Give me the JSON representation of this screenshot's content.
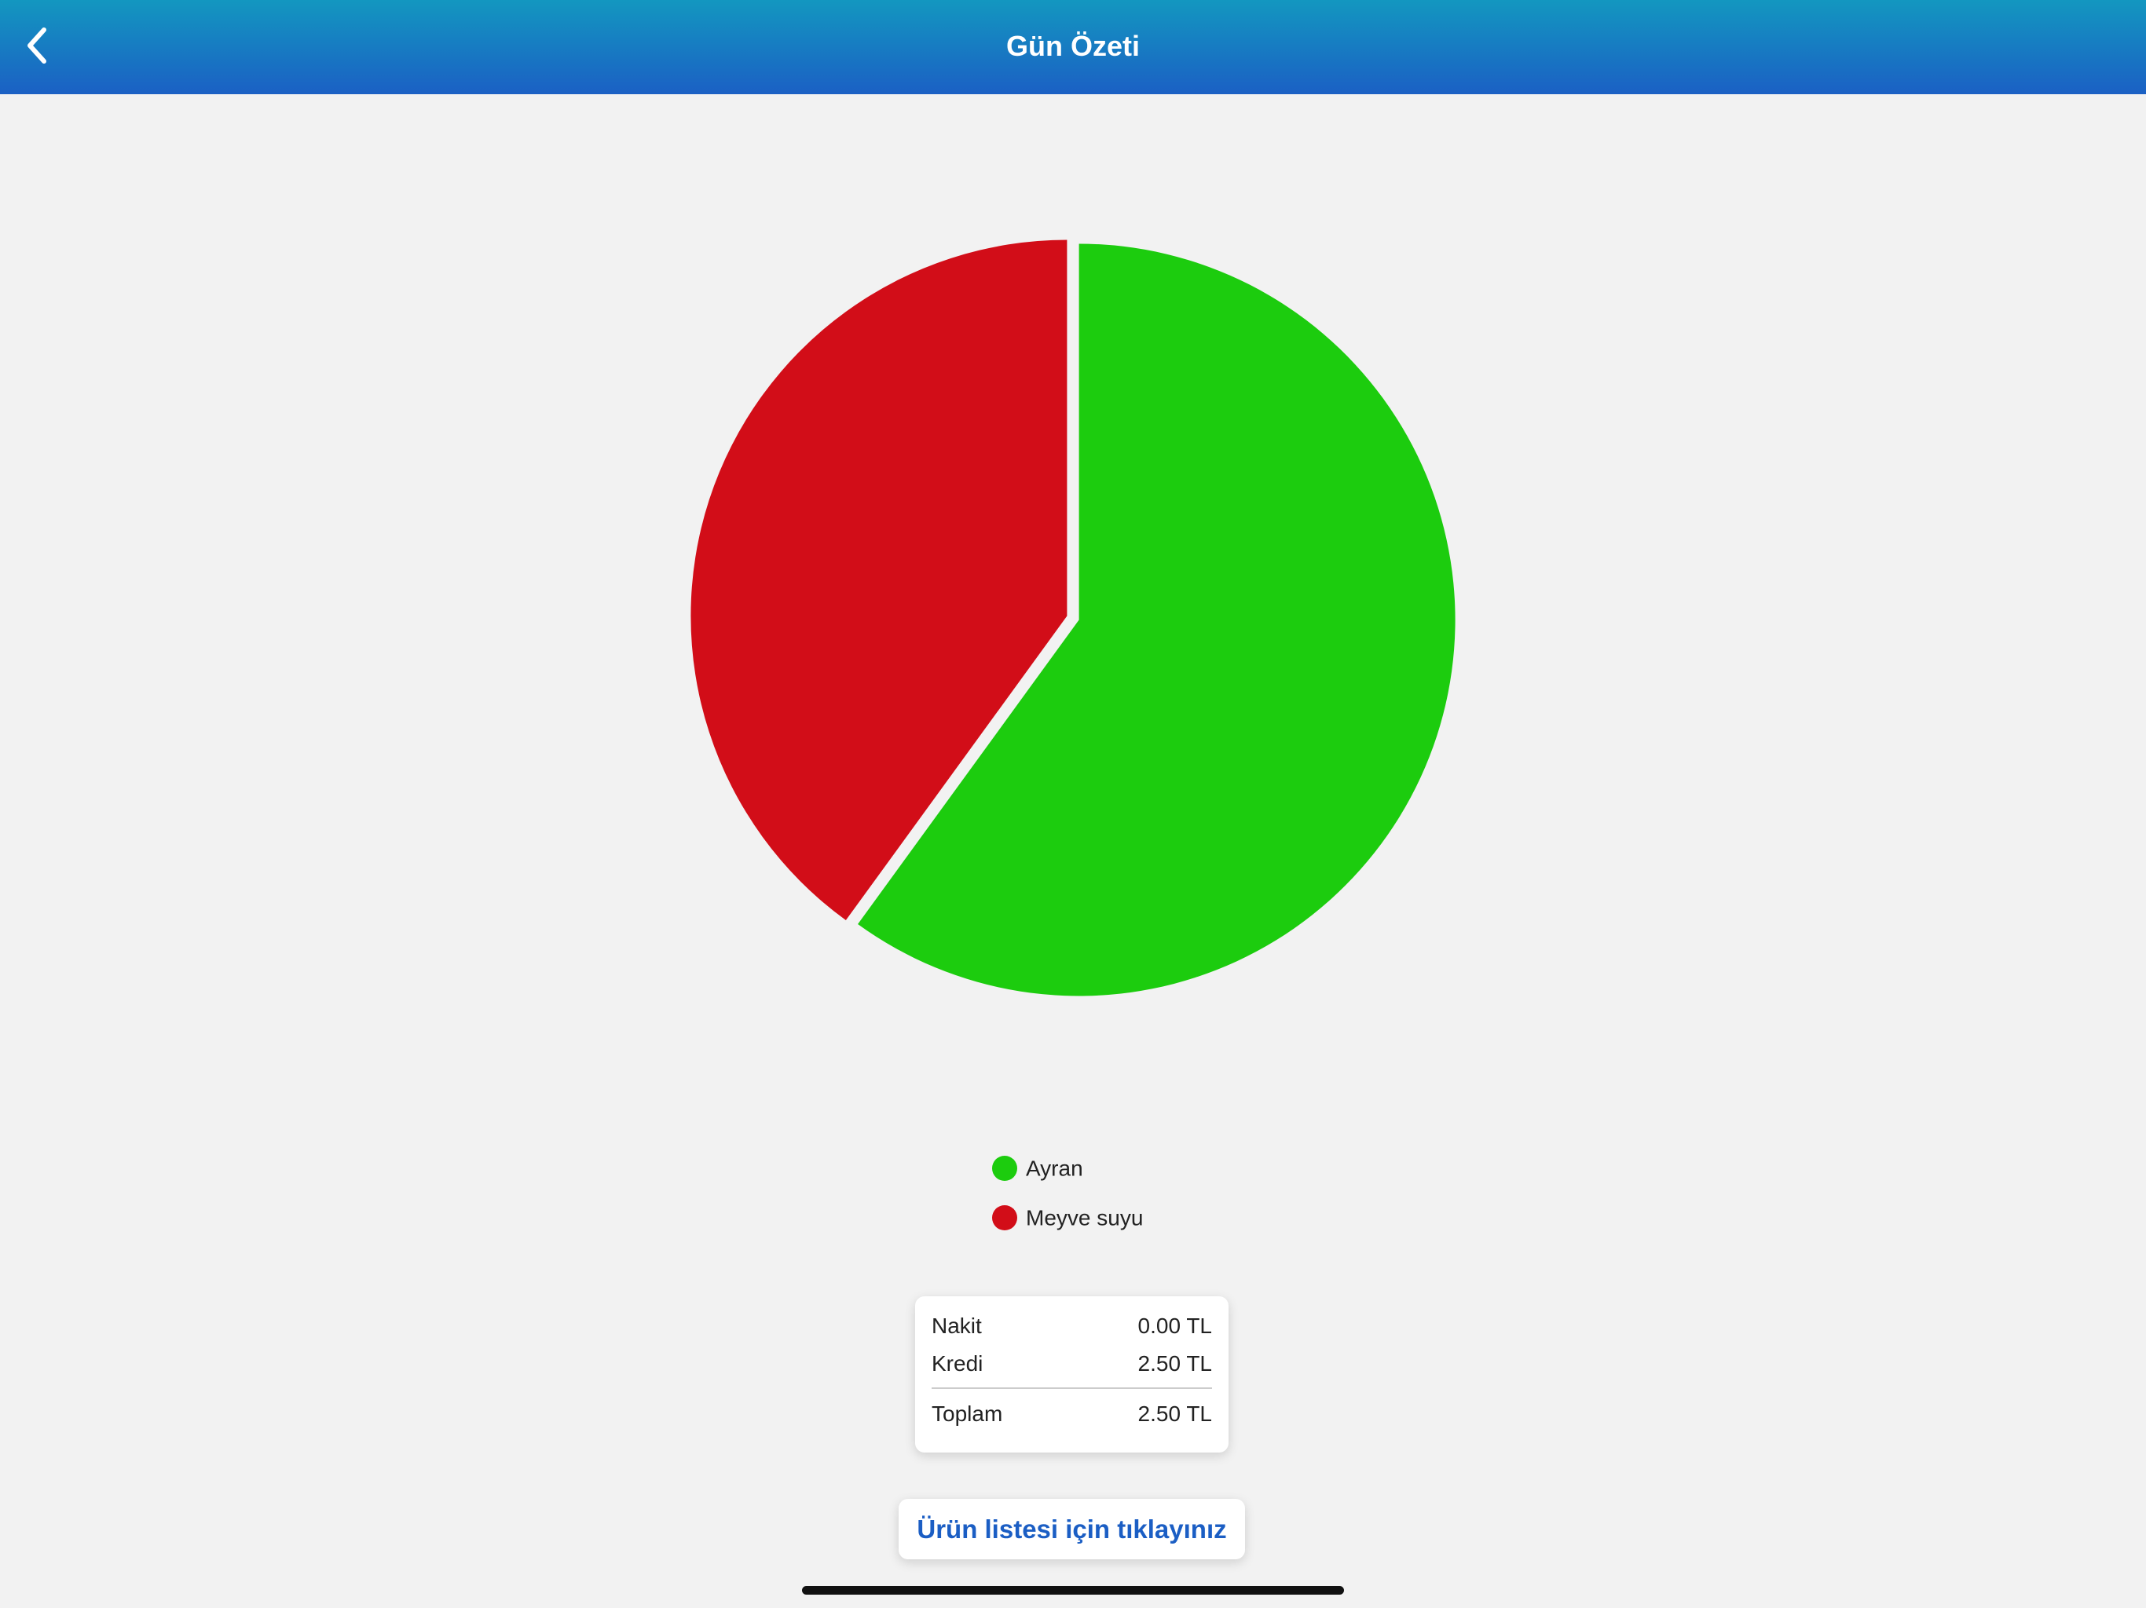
{
  "header": {
    "title": "Gün Özeti"
  },
  "chart_data": {
    "type": "pie",
    "categories": [
      "Ayran",
      "Meyve suyu"
    ],
    "values": [
      60,
      40
    ],
    "colors": [
      "#1ccc0e",
      "#d20d18"
    ]
  },
  "summary": {
    "rows": [
      [
        "Nakit",
        "0.00 TL"
      ],
      [
        "Kredi",
        "2.50 TL"
      ]
    ],
    "total": [
      "Toplam",
      "2.50 TL"
    ]
  },
  "button": {
    "label": "Ürün listesi için tıklayınız"
  }
}
